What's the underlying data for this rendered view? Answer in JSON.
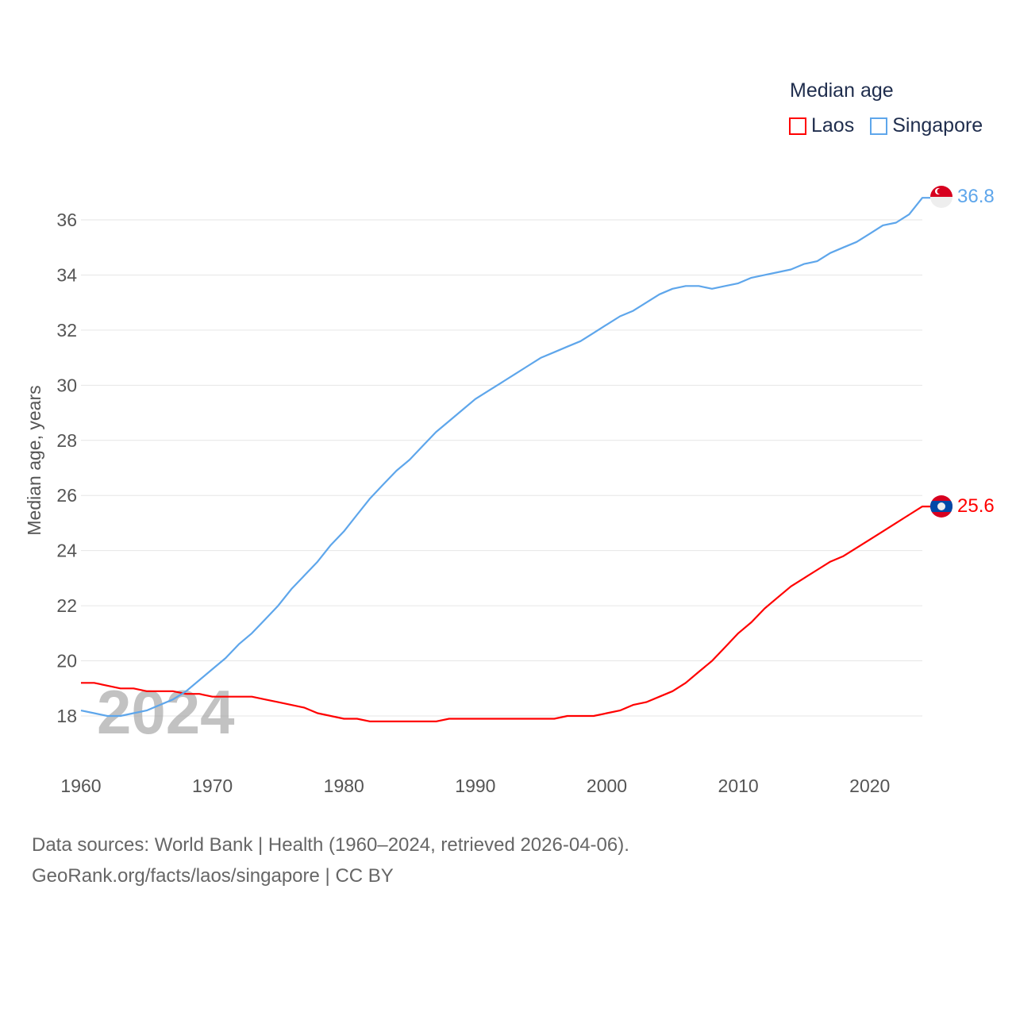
{
  "chart_data": {
    "type": "line",
    "title": "Median age",
    "xlabel": "",
    "ylabel": "Median age, years",
    "xlim": [
      1960,
      2024
    ],
    "ylim": [
      18,
      36
    ],
    "x_ticks": [
      1960,
      1970,
      1980,
      1990,
      2000,
      2010,
      2020
    ],
    "y_ticks": [
      18,
      20,
      22,
      24,
      26,
      28,
      30,
      32,
      34,
      36
    ],
    "grid": true,
    "legend_position": "top-right",
    "year_watermark": "2024",
    "x": [
      1960,
      1961,
      1962,
      1963,
      1964,
      1965,
      1966,
      1967,
      1968,
      1969,
      1970,
      1971,
      1972,
      1973,
      1974,
      1975,
      1976,
      1977,
      1978,
      1979,
      1980,
      1981,
      1982,
      1983,
      1984,
      1985,
      1986,
      1987,
      1988,
      1989,
      1990,
      1991,
      1992,
      1993,
      1994,
      1995,
      1996,
      1997,
      1998,
      1999,
      2000,
      2001,
      2002,
      2003,
      2004,
      2005,
      2006,
      2007,
      2008,
      2009,
      2010,
      2011,
      2012,
      2013,
      2014,
      2015,
      2016,
      2017,
      2018,
      2019,
      2020,
      2021,
      2022,
      2023,
      2024
    ],
    "series": [
      {
        "name": "Laos",
        "color": "#ff0000",
        "end_label": "25.6",
        "values": [
          19.2,
          19.2,
          19.1,
          19.0,
          19.0,
          18.9,
          18.9,
          18.9,
          18.8,
          18.8,
          18.7,
          18.7,
          18.7,
          18.7,
          18.6,
          18.5,
          18.4,
          18.3,
          18.1,
          18.0,
          17.9,
          17.9,
          17.8,
          17.8,
          17.8,
          17.8,
          17.8,
          17.8,
          17.9,
          17.9,
          17.9,
          17.9,
          17.9,
          17.9,
          17.9,
          17.9,
          17.9,
          18.0,
          18.0,
          18.0,
          18.1,
          18.2,
          18.4,
          18.5,
          18.7,
          18.9,
          19.2,
          19.6,
          20.0,
          20.5,
          21.0,
          21.4,
          21.9,
          22.3,
          22.7,
          23.0,
          23.3,
          23.6,
          23.8,
          24.1,
          24.4,
          24.7,
          25.0,
          25.3,
          25.6
        ]
      },
      {
        "name": "Singapore",
        "color": "#5ea6eb",
        "end_label": "36.8",
        "values": [
          18.2,
          18.1,
          18.0,
          18.0,
          18.1,
          18.2,
          18.4,
          18.6,
          18.9,
          19.3,
          19.7,
          20.1,
          20.6,
          21.0,
          21.5,
          22.0,
          22.6,
          23.1,
          23.6,
          24.2,
          24.7,
          25.3,
          25.9,
          26.4,
          26.9,
          27.3,
          27.8,
          28.3,
          28.7,
          29.1,
          29.5,
          29.8,
          30.1,
          30.4,
          30.7,
          31.0,
          31.2,
          31.4,
          31.6,
          31.9,
          32.2,
          32.5,
          32.7,
          33.0,
          33.3,
          33.5,
          33.6,
          33.6,
          33.5,
          33.6,
          33.7,
          33.9,
          34.0,
          34.1,
          34.2,
          34.4,
          34.5,
          34.8,
          35.0,
          35.2,
          35.5,
          35.8,
          35.9,
          36.2,
          36.8
        ]
      }
    ]
  },
  "source": {
    "line1": "Data sources: World Bank | Health (1960–2024, retrieved 2026-04-06).",
    "line2": "GeoRank.org/facts/laos/singapore | CC BY"
  }
}
